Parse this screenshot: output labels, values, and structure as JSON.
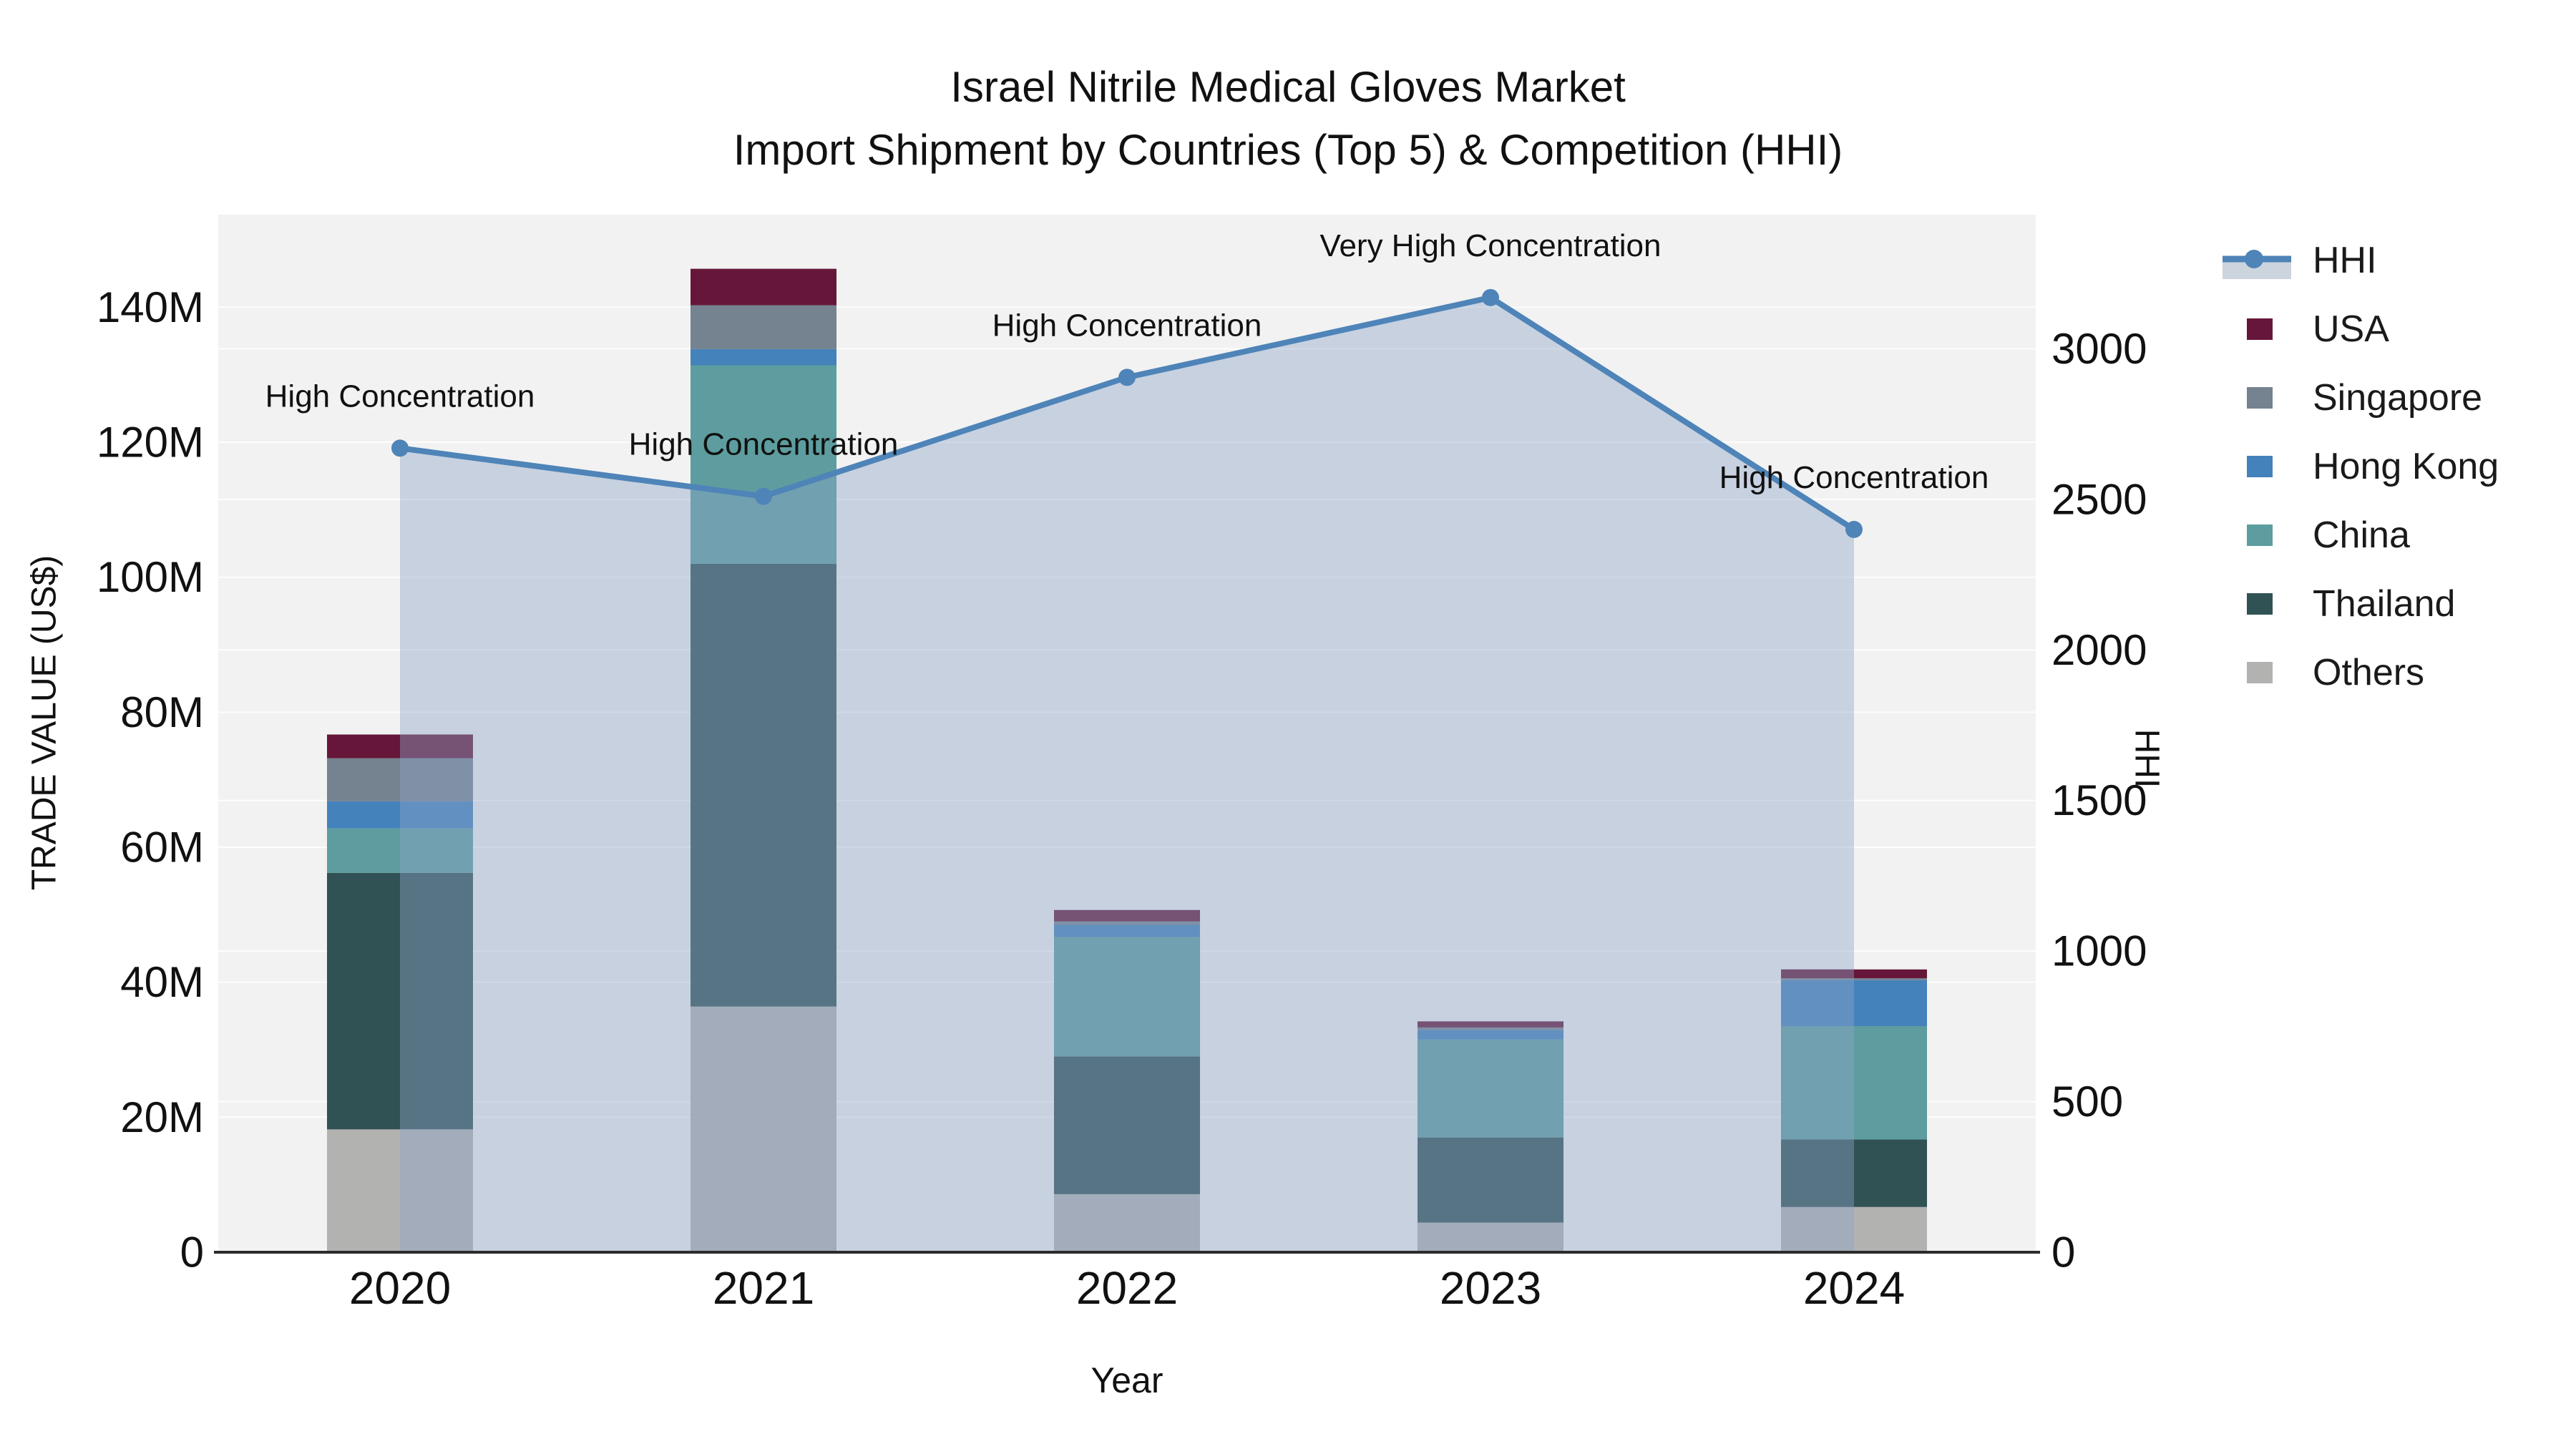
{
  "title": {
    "line1": "Israel Nitrile Medical Gloves Market",
    "line2": "Import Shipment by Countries (Top 5) & Competition (HHI)"
  },
  "axes": {
    "x": {
      "title": "Year",
      "ticks": [
        "2020",
        "2021",
        "2022",
        "2023",
        "2024"
      ]
    },
    "left": {
      "title": "TRADE VALUE (US$)",
      "ticks": [
        "0",
        "20M",
        "40M",
        "60M",
        "80M",
        "100M",
        "120M",
        "140M"
      ],
      "tick_step_musd": 20
    },
    "right": {
      "title": "HHI",
      "ticks": [
        "0",
        "500",
        "1000",
        "1500",
        "2000",
        "2500",
        "3000"
      ],
      "tick_step": 500
    }
  },
  "legend": {
    "items": [
      {
        "label": "HHI",
        "type": "line",
        "color": "#4e84b8",
        "band_color": "#ccd4de"
      },
      {
        "label": "USA",
        "type": "swatch",
        "color": "#661739"
      },
      {
        "label": "Singapore",
        "type": "swatch",
        "color": "#75828f"
      },
      {
        "label": "Hong Kong",
        "type": "swatch",
        "color": "#4482bb"
      },
      {
        "label": "China",
        "type": "swatch",
        "color": "#5e9d9f"
      },
      {
        "label": "Thailand",
        "type": "swatch",
        "color": "#315254"
      },
      {
        "label": "Others",
        "type": "swatch",
        "color": "#b2b2b1"
      }
    ]
  },
  "chart_data": {
    "type": "bar",
    "subtype": "stacked-bar-with-line-overlay",
    "title": "Israel Nitrile Medical Gloves Market — Import Shipment by Countries (Top 5) & Competition (HHI)",
    "xlabel": "Year",
    "ylabel_left": "TRADE VALUE (US$)",
    "ylabel_right": "HHI",
    "categories": [
      "2020",
      "2021",
      "2022",
      "2023",
      "2024"
    ],
    "bar_value_unit": "million US$",
    "stack_order_bottom_to_top": [
      "Others",
      "Thailand",
      "China",
      "Hong Kong",
      "Singapore",
      "USA"
    ],
    "series": [
      {
        "name": "Others",
        "color": "#b2b2b1",
        "values": [
          18.2,
          36.4,
          8.6,
          4.4,
          6.7
        ]
      },
      {
        "name": "Thailand",
        "color": "#315254",
        "values": [
          38.0,
          65.6,
          20.4,
          12.6,
          10.0
        ]
      },
      {
        "name": "China",
        "color": "#5e9d9f",
        "values": [
          6.6,
          29.4,
          17.7,
          14.5,
          16.8
        ]
      },
      {
        "name": "Hong Kong",
        "color": "#4482bb",
        "values": [
          4.0,
          2.4,
          1.8,
          1.4,
          6.8
        ]
      },
      {
        "name": "Singapore",
        "color": "#75828f",
        "values": [
          6.4,
          6.5,
          0.5,
          0.4,
          0.3
        ]
      },
      {
        "name": "USA",
        "color": "#661739",
        "values": [
          3.5,
          5.4,
          1.7,
          0.9,
          1.3
        ]
      }
    ],
    "bar_totals_musd": [
      76.7,
      145.7,
      50.7,
      34.2,
      41.9
    ],
    "line": {
      "name": "HHI",
      "color": "#4e84b8",
      "area_fill_color": "#8da4c7",
      "area_fill_opacity": 0.42,
      "values": [
        2670,
        2510,
        2905,
        3170,
        2400
      ]
    },
    "annotations": [
      {
        "x": "2020",
        "text": "High Concentration"
      },
      {
        "x": "2021",
        "text": "High Concentration"
      },
      {
        "x": "2022",
        "text": "High Concentration"
      },
      {
        "x": "2023",
        "text": "Very High Concentration"
      },
      {
        "x": "2024",
        "text": "High Concentration"
      }
    ],
    "left_axis_range_musd": [
      0,
      153.7
    ],
    "right_axis_range": [
      0,
      3445
    ],
    "grid": true,
    "legend_position": "right"
  },
  "colors": {
    "plot_bg": "#f2f2f2",
    "grid": "#ffffff",
    "axis_line": "#2b2b2b",
    "text": "#111111"
  }
}
